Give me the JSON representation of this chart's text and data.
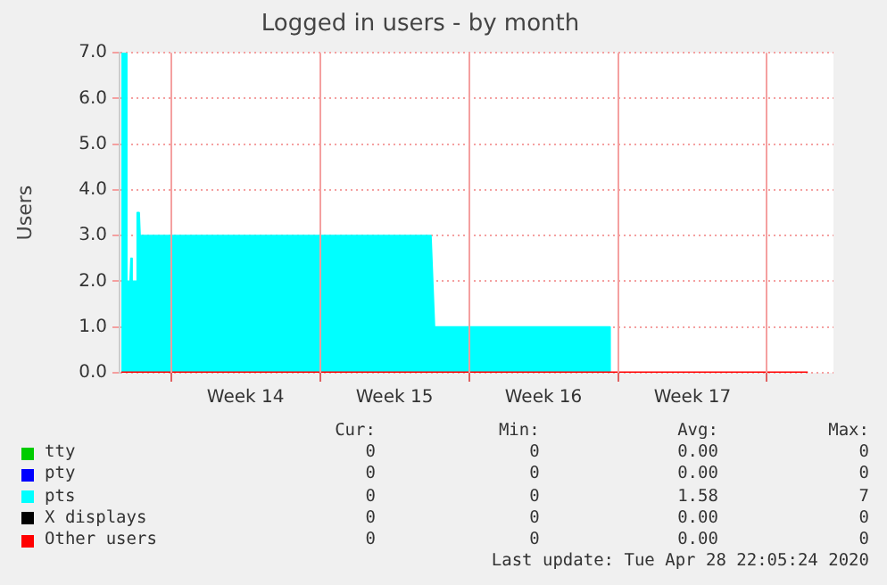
{
  "chart_data": {
    "type": "area",
    "title": "Logged in users - by month",
    "ylabel": "Users",
    "xlim": [
      "2020-03-27T14:00",
      "2020-04-30T03:00"
    ],
    "xticks": [
      {
        "value": "2020-03-30T00:00",
        "label": null
      },
      {
        "value": "2020-04-02T12:00",
        "label": "Week 14"
      },
      {
        "value": "2020-04-06T00:00",
        "label": null
      },
      {
        "value": "2020-04-09T12:00",
        "label": "Week 15"
      },
      {
        "value": "2020-04-13T00:00",
        "label": null
      },
      {
        "value": "2020-04-16T12:00",
        "label": "Week 16"
      },
      {
        "value": "2020-04-20T00:00",
        "label": null
      },
      {
        "value": "2020-04-23T12:00",
        "label": "Week 17"
      },
      {
        "value": "2020-04-27T00:00",
        "label": null
      }
    ],
    "ylim": [
      0,
      7
    ],
    "yticks": [
      {
        "value": 0,
        "label": "0.0"
      },
      {
        "value": 1,
        "label": "1.0"
      },
      {
        "value": 2,
        "label": "2.0"
      },
      {
        "value": 3,
        "label": "3.0"
      },
      {
        "value": 4,
        "label": "4.0"
      },
      {
        "value": 5,
        "label": "5.0"
      },
      {
        "value": 6,
        "label": "6.0"
      },
      {
        "value": 7,
        "label": "7.0"
      }
    ],
    "grid": true,
    "legend": "bottom",
    "series": [
      {
        "name": "tty",
        "type": "line",
        "color": "#00cc00"
      },
      {
        "name": "pty",
        "type": "line",
        "color": "#0000ff"
      },
      {
        "name": "pts",
        "color": "#00ffff",
        "x": [
          "2020-03-27T16:00",
          "2020-03-27T21:00",
          "2020-03-27T22:00",
          "2020-03-28T02:00",
          "2020-03-28T03:00",
          "2020-03-28T04:00",
          "2020-03-28T09:00",
          "2020-03-28T10:00",
          "2020-03-28T12:00",
          "2020-03-28T13:00",
          "2020-04-11T05:00",
          "2020-04-11T09:00",
          "2020-04-19T14:00",
          "2020-04-19T15:00",
          "2020-04-28T22:00"
        ],
        "values": [
          7,
          7,
          2,
          2,
          2.5,
          2,
          2,
          3.5,
          3.5,
          3,
          3,
          1,
          1,
          0,
          0
        ]
      },
      {
        "name": "X displays",
        "type": "line",
        "color": "#000000"
      },
      {
        "name": "Other users",
        "type": "line",
        "color": "#ff0000",
        "x": [
          "2020-03-27T16:00",
          "2020-04-28T22:00"
        ],
        "values": [
          0,
          0
        ]
      }
    ],
    "annotations": [
      "Cur:",
      "Min:",
      "Avg:",
      "Max:",
      "0",
      "0",
      "0.00",
      "0",
      "0",
      "0",
      "0.00",
      "0",
      "0",
      "0",
      "1.58",
      "7",
      "0",
      "0",
      "0.00",
      "0",
      "0",
      "0",
      "0.00",
      "0",
      "Last update: Tue Apr 28 22:05:24 2020"
    ]
  }
}
